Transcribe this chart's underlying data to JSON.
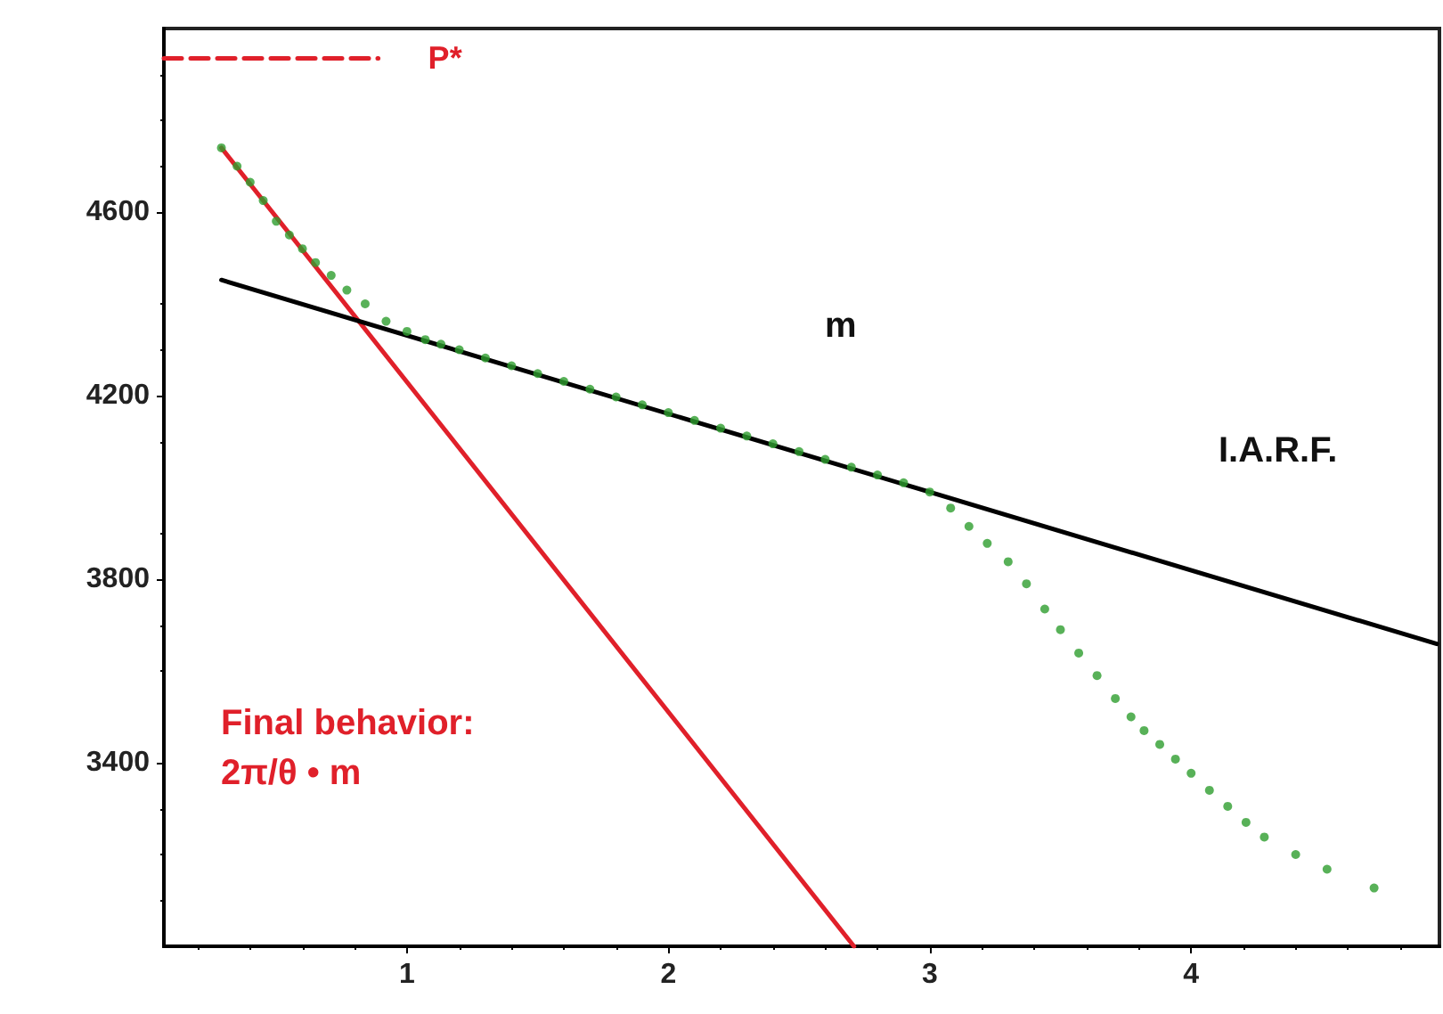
{
  "chart_data": {
    "type": "line",
    "xlim": [
      0.07,
      4.95
    ],
    "xticks": [
      1,
      2,
      3,
      4
    ],
    "ylim": [
      3000,
      5000
    ],
    "yticks": [
      3400,
      3800,
      4200,
      4600
    ],
    "grid": false,
    "legend": false,
    "series": [
      {
        "name": "P*",
        "color": "#e0202a",
        "line_style": "dashed",
        "marker": "none",
        "x": [
          0.07,
          0.89
        ],
        "values": [
          4935,
          4935
        ]
      },
      {
        "color": "#e0202a",
        "line_style": "solid",
        "marker": "none",
        "x": [
          0.29,
          2.71
        ],
        "values": [
          4740,
          3000
        ]
      },
      {
        "color": "#000000",
        "line_style": "solid",
        "marker": "none",
        "x": [
          0.29,
          4.94
        ],
        "values": [
          4452,
          3659
        ]
      },
      {
        "type": "scatter",
        "color": "#2e9e2e",
        "marker": "circle",
        "x": [
          0.29,
          0.35,
          0.4,
          0.45,
          0.5,
          0.55,
          0.6,
          0.65,
          0.71,
          0.77,
          0.84,
          0.92,
          1.0,
          1.07,
          1.13,
          1.2,
          1.3,
          1.4,
          1.5,
          1.6,
          1.7,
          1.8,
          1.9,
          2.0,
          2.1,
          2.2,
          2.3,
          2.4,
          2.5,
          2.6,
          2.7,
          2.8,
          2.9,
          3.0,
          3.08,
          3.15,
          3.22,
          3.3,
          3.37,
          3.44,
          3.5,
          3.57,
          3.64,
          3.71,
          3.77,
          3.82,
          3.88,
          3.94,
          4.0,
          4.07,
          4.14,
          4.21,
          4.28,
          4.4,
          4.52,
          4.7
        ],
        "values": [
          4740,
          4700,
          4665,
          4625,
          4580,
          4550,
          4520,
          4490,
          4462,
          4430,
          4400,
          4362,
          4340,
          4322,
          4312,
          4300,
          4282,
          4265,
          4248,
          4231,
          4214,
          4197,
          4180,
          4163,
          4146,
          4129,
          4112,
          4095,
          4078,
          4061,
          4044,
          4027,
          4010,
          3990,
          3955,
          3915,
          3878,
          3838,
          3790,
          3735,
          3690,
          3639,
          3590,
          3540,
          3500,
          3470,
          3440,
          3408,
          3377,
          3340,
          3305,
          3270,
          3238,
          3200,
          3168,
          3127
        ]
      }
    ],
    "annotations": [
      "m",
      "I.A.R.F.",
      "Final behavior:\n2π/θ • m"
    ]
  }
}
